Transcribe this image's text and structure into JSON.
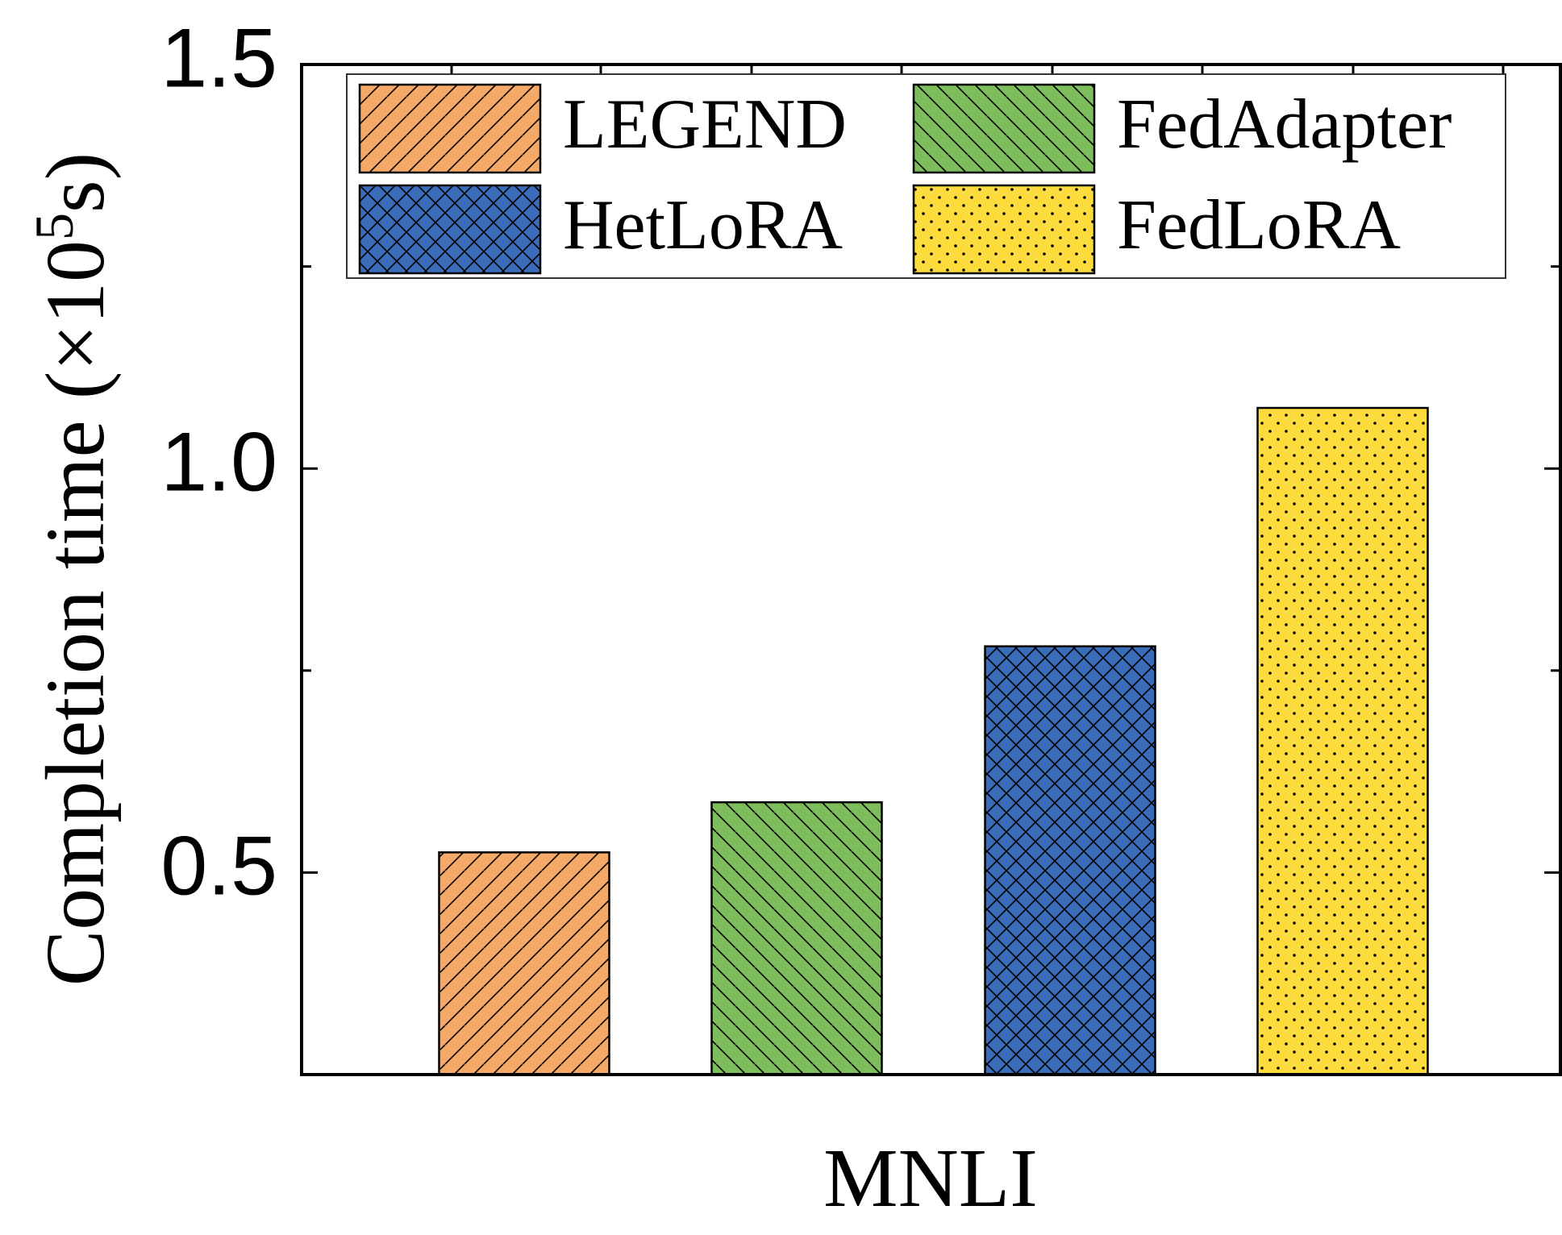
{
  "chart_data": {
    "type": "bar",
    "categories": [
      "MNLI"
    ],
    "xlabel": "MNLI",
    "ylabel": {
      "prefix": "Completion time (×10",
      "superscript": "5",
      "suffix": "s)"
    },
    "ylim": [
      0.25,
      1.5
    ],
    "yticks": [
      "0.5",
      "1.0",
      "1.5"
    ],
    "grid": false,
    "legend_position": "top",
    "series": [
      {
        "name": "LEGEND",
        "values": [
          0.525
        ],
        "color": "#F5A968",
        "pattern": "diagonal-up"
      },
      {
        "name": "FedAdapter",
        "values": [
          0.587
        ],
        "color": "#7DBD5C",
        "pattern": "diagonal-down"
      },
      {
        "name": "HetLoRA",
        "values": [
          0.78
        ],
        "color": "#3A6CB9",
        "pattern": "crosshatch"
      },
      {
        "name": "FedLoRA",
        "values": [
          1.075
        ],
        "color": "#FCDC3C",
        "pattern": "dots"
      }
    ]
  }
}
